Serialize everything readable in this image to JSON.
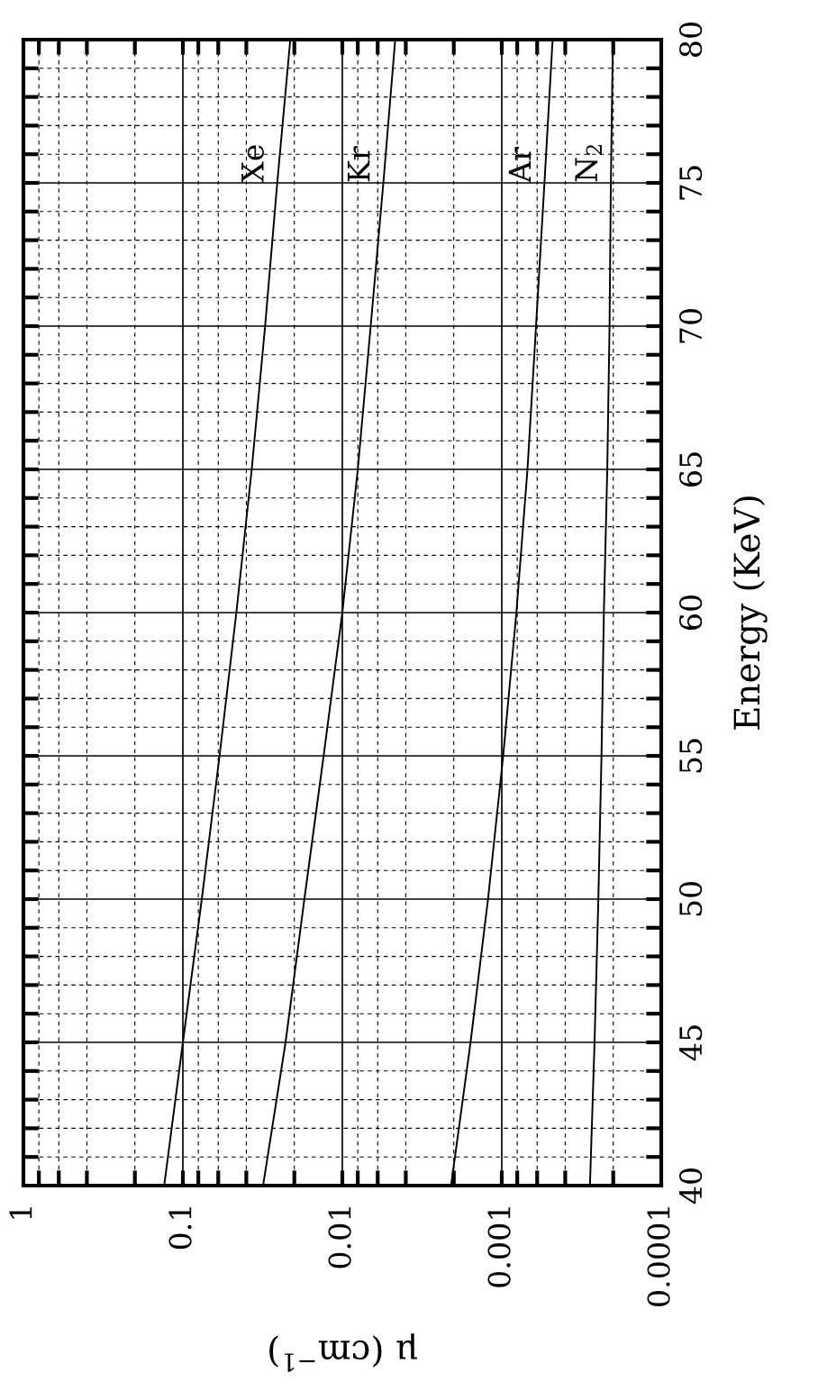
{
  "chart_data": {
    "type": "line",
    "xlabel": "μ (cm$^{−1}$)",
    "ylabel": "Energy (KeV)",
    "log": "x",
    "xlim": [
      1,
      0.0001
    ],
    "xticks": [
      1,
      {
        "value": 0.8,
        "label": null
      },
      {
        "value": 0.6,
        "label": null
      },
      {
        "value": 0.4,
        "label": null
      },
      {
        "value": 0.2,
        "label": null
      },
      0.1,
      {
        "value": 0.08,
        "label": null
      },
      {
        "value": 0.06,
        "label": null
      },
      {
        "value": 0.04,
        "label": null
      },
      {
        "value": 0.02,
        "label": null
      },
      0.01,
      {
        "value": 0.008,
        "label": null
      },
      {
        "value": 0.006,
        "label": null
      },
      {
        "value": 0.004,
        "label": null
      },
      {
        "value": 0.002,
        "label": null
      },
      0.001,
      {
        "value": 0.0008,
        "label": null
      },
      {
        "value": 0.0006,
        "label": null
      },
      {
        "value": 0.0004,
        "label": null
      },
      {
        "value": 0.0002,
        "label": null
      },
      0.0001
    ],
    "ylim": [
      40,
      80
    ],
    "yticks": [
      40,
      {
        "value": 41,
        "label": null
      },
      {
        "value": 42,
        "label": null
      },
      {
        "value": 43,
        "label": null
      },
      {
        "value": 44,
        "label": null
      },
      45,
      {
        "value": 46,
        "label": null
      },
      {
        "value": 47,
        "label": null
      },
      {
        "value": 48,
        "label": null
      },
      {
        "value": 49,
        "label": null
      },
      50,
      {
        "value": 51,
        "label": null
      },
      {
        "value": 52,
        "label": null
      },
      {
        "value": 53,
        "label": null
      },
      {
        "value": 54,
        "label": null
      },
      55,
      {
        "value": 56,
        "label": null
      },
      {
        "value": 57,
        "label": null
      },
      {
        "value": 58,
        "label": null
      },
      {
        "value": 59,
        "label": null
      },
      60,
      {
        "value": 61,
        "label": null
      },
      {
        "value": 62,
        "label": null
      },
      {
        "value": 63,
        "label": null
      },
      {
        "value": 64,
        "label": null
      },
      65,
      {
        "value": 66,
        "label": null
      },
      {
        "value": 67,
        "label": null
      },
      {
        "value": 68,
        "label": null
      },
      {
        "value": 69,
        "label": null
      },
      70,
      {
        "value": 71,
        "label": null
      },
      {
        "value": 72,
        "label": null
      },
      {
        "value": 73,
        "label": null
      },
      {
        "value": 74,
        "label": null
      },
      75,
      {
        "value": 76,
        "label": null
      },
      {
        "value": 77,
        "label": null
      },
      {
        "value": 78,
        "label": null
      },
      {
        "value": 79,
        "label": null
      },
      80
    ],
    "grid": true,
    "marker": "none",
    "line_style": "solid",
    "series": [
      {
        "name": "Xe",
        "color": "#000000",
        "x": [
          0.131,
          0.1,
          0.0761,
          0.0589,
          0.0462,
          0.037,
          0.0305,
          0.0256,
          0.0212
        ],
        "values": [
          40,
          45,
          50,
          55,
          60,
          65,
          70,
          75,
          80
        ]
      },
      {
        "name": "Kr",
        "color": "#000000",
        "x": [
          0.0314,
          0.0227,
          0.0173,
          0.0131,
          0.01,
          0.008,
          0.00664,
          0.00553,
          0.00466
        ],
        "values": [
          40,
          45,
          50,
          55,
          60,
          65,
          70,
          75,
          80
        ]
      },
      {
        "name": "Ar",
        "color": "#000000",
        "x": [
          0.00208,
          0.00157,
          0.00122,
          0.00098,
          0.00081,
          0.00069,
          0.00061,
          0.00054,
          0.00048
        ],
        "values": [
          40,
          45,
          50,
          55,
          60,
          65,
          70,
          75,
          80
        ]
      },
      {
        "name": "N$_{2}$",
        "color": "#000000",
        "x": [
          0.00028,
          0.000262,
          0.000248,
          0.000237,
          0.000229,
          0.000218,
          0.000211,
          0.000207,
          0.000201
        ],
        "values": [
          40,
          45,
          50,
          55,
          60,
          65,
          70,
          75,
          80
        ]
      }
    ]
  }
}
